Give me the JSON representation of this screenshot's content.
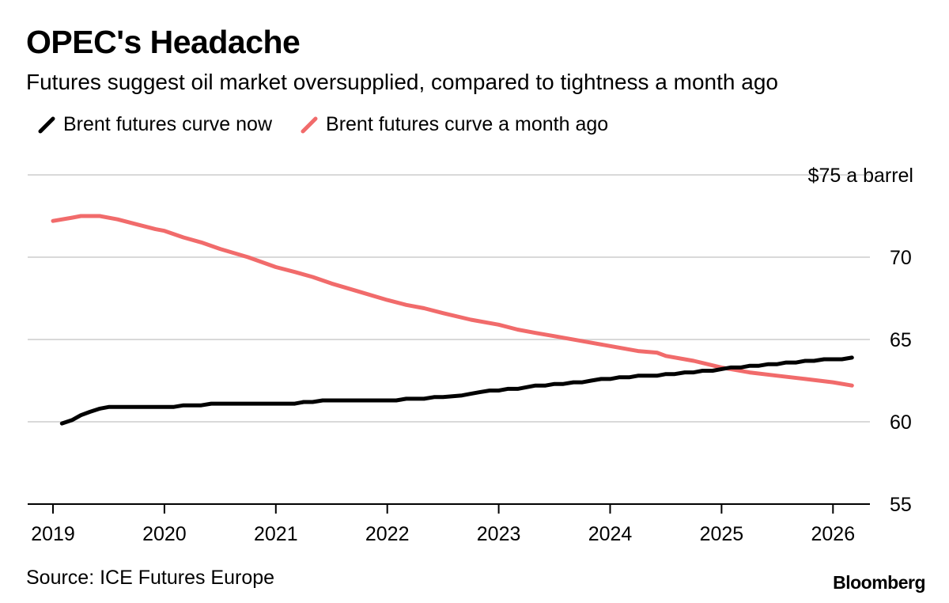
{
  "header": {
    "title": "OPEC's Headache",
    "subtitle": "Futures suggest oil market oversupplied, compared to tightness a month ago"
  },
  "footer": {
    "source": "Source: ICE Futures Europe",
    "brand": "Bloomberg"
  },
  "chart_data": {
    "type": "line",
    "title": "OPEC's Headache",
    "subtitle": "Futures suggest oil market oversupplied, compared to tightness a month ago",
    "xlabel": "",
    "ylabel": "",
    "xlim": [
      2019,
      2026.4
    ],
    "ylim": [
      55,
      75
    ],
    "x_ticks": [
      2019,
      2020,
      2021,
      2022,
      2023,
      2024,
      2025,
      2026
    ],
    "x_tick_labels": [
      "2019",
      "2020",
      "2021",
      "2022",
      "2023",
      "2024",
      "2025",
      "2026"
    ],
    "y_ticks": [
      55,
      60,
      65,
      70,
      75
    ],
    "y_tick_labels": [
      "55",
      "60",
      "65",
      "70",
      "$75 a barrel"
    ],
    "grid": true,
    "legend_position": "top-left",
    "series": [
      {
        "name": "Brent futures curve now",
        "color": "#000000",
        "x": [
          2019.08,
          2019.17,
          2019.25,
          2019.33,
          2019.42,
          2019.5,
          2019.75,
          2020.0,
          2020.08,
          2020.17,
          2020.33,
          2020.42,
          2020.5,
          2020.75,
          2021.0,
          2021.17,
          2021.25,
          2021.33,
          2021.42,
          2021.5,
          2021.75,
          2022.0,
          2022.08,
          2022.17,
          2022.33,
          2022.42,
          2022.5,
          2022.67,
          2022.75,
          2022.83,
          2022.92,
          2023.0,
          2023.08,
          2023.17,
          2023.25,
          2023.33,
          2023.42,
          2023.5,
          2023.58,
          2023.67,
          2023.75,
          2023.83,
          2023.92,
          2024.0,
          2024.08,
          2024.17,
          2024.25,
          2024.33,
          2024.42,
          2024.5,
          2024.58,
          2024.67,
          2024.75,
          2024.83,
          2024.92,
          2025.0,
          2025.08,
          2025.17,
          2025.25,
          2025.33,
          2025.42,
          2025.5,
          2025.58,
          2025.67,
          2025.75,
          2025.83,
          2025.92,
          2026.0,
          2026.08,
          2026.17
        ],
        "y": [
          59.9,
          60.1,
          60.4,
          60.6,
          60.8,
          60.9,
          60.9,
          60.9,
          60.9,
          61.0,
          61.0,
          61.1,
          61.1,
          61.1,
          61.1,
          61.1,
          61.2,
          61.2,
          61.3,
          61.3,
          61.3,
          61.3,
          61.3,
          61.4,
          61.4,
          61.5,
          61.5,
          61.6,
          61.7,
          61.8,
          61.9,
          61.9,
          62.0,
          62.0,
          62.1,
          62.2,
          62.2,
          62.3,
          62.3,
          62.4,
          62.4,
          62.5,
          62.6,
          62.6,
          62.7,
          62.7,
          62.8,
          62.8,
          62.8,
          62.9,
          62.9,
          63.0,
          63.0,
          63.1,
          63.1,
          63.2,
          63.3,
          63.3,
          63.4,
          63.4,
          63.5,
          63.5,
          63.6,
          63.6,
          63.7,
          63.7,
          63.8,
          63.8,
          63.8,
          63.9
        ]
      },
      {
        "name": "Brent futures curve a month ago",
        "color": "#f16b6b",
        "x": [
          2019.0,
          2019.17,
          2019.25,
          2019.42,
          2019.58,
          2019.75,
          2019.92,
          2020.0,
          2020.17,
          2020.33,
          2020.5,
          2020.75,
          2021.0,
          2021.17,
          2021.33,
          2021.5,
          2021.75,
          2022.0,
          2022.17,
          2022.33,
          2022.5,
          2022.75,
          2023.0,
          2023.17,
          2023.33,
          2023.5,
          2023.75,
          2024.0,
          2024.25,
          2024.42,
          2024.5,
          2024.75,
          2025.0,
          2025.25,
          2025.5,
          2025.75,
          2026.0,
          2026.17
        ],
        "y": [
          72.2,
          72.4,
          72.5,
          72.5,
          72.3,
          72.0,
          71.7,
          71.6,
          71.2,
          70.9,
          70.5,
          70.0,
          69.4,
          69.1,
          68.8,
          68.4,
          67.9,
          67.4,
          67.1,
          66.9,
          66.6,
          66.2,
          65.9,
          65.6,
          65.4,
          65.2,
          64.9,
          64.6,
          64.3,
          64.2,
          64.0,
          63.7,
          63.3,
          63.0,
          62.8,
          62.6,
          62.4,
          62.2
        ]
      }
    ]
  }
}
